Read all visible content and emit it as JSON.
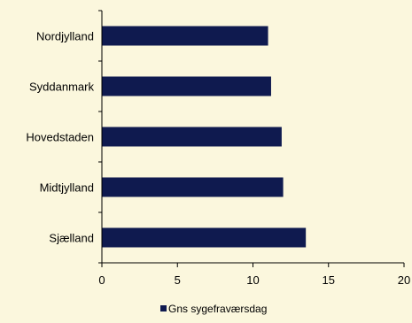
{
  "chart_data": {
    "type": "bar",
    "orientation": "horizontal",
    "categories": [
      "Nordjylland",
      "Syddanmark",
      "Hovedstaden",
      "Midtjylland",
      "Sjælland"
    ],
    "series": [
      {
        "name": "Gns sygefraværsdag",
        "values": [
          11.0,
          11.2,
          11.9,
          12.0,
          13.5
        ]
      }
    ],
    "xlim": [
      0,
      20
    ],
    "xticks": [
      "0",
      "5",
      "10",
      "15",
      "20"
    ],
    "grid": false,
    "legend_position": "bottom",
    "colors": {
      "bar": "#0f1a4f",
      "background": "#fbf7dd",
      "axis": "#000000"
    }
  }
}
